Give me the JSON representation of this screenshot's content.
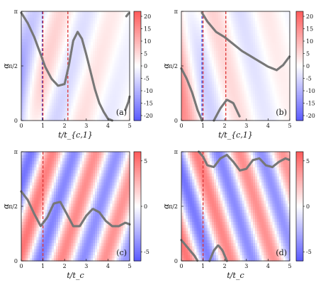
{
  "chart_data": [
    {
      "panel": "(a)",
      "type": "heatmap",
      "xlabel": "t/t_{c,1}",
      "ylabel": "α",
      "xlim": [
        0,
        5
      ],
      "xticks": [
        "0",
        "1",
        "2",
        "3",
        "4",
        "5"
      ],
      "yticks": [
        "0",
        "π/2",
        "π"
      ],
      "colorbar": {
        "ticks": [
          "20",
          "15",
          "10",
          "5",
          "0",
          "-5",
          "-10",
          "-15",
          "-20"
        ],
        "range": [
          -22,
          22
        ]
      },
      "vlines": [
        {
          "x": 0.97,
          "color": "#3355ee"
        },
        {
          "x": 1.0,
          "color": "#dd3333"
        },
        {
          "x": 2.15,
          "color": "#dd3333"
        }
      ],
      "curve": {
        "x": [
          0.0,
          0.3,
          0.6,
          0.9,
          1.1,
          1.4,
          1.7,
          2.0,
          2.2,
          2.4,
          2.6,
          2.8,
          3.0,
          3.2,
          3.4,
          3.6,
          3.8,
          4.0,
          4.2
        ],
        "y": [
          3.1,
          2.8,
          2.4,
          1.9,
          1.55,
          1.2,
          1.0,
          1.05,
          1.6,
          2.3,
          2.55,
          2.35,
          1.9,
          1.4,
          0.9,
          0.5,
          0.25,
          0.05,
          0.0
        ]
      },
      "curve2": {
        "x": [
          4.8,
          4.95,
          5.0
        ],
        "y": [
          0.3,
          0.55,
          0.7
        ]
      },
      "curve3": {
        "x": [
          4.85,
          4.95,
          5.0
        ],
        "y": [
          3.0,
          3.08,
          3.1
        ]
      }
    },
    {
      "panel": "(b)",
      "type": "heatmap",
      "xlabel": "t/t_{c,1}",
      "ylabel": "α",
      "xlim": [
        0,
        5
      ],
      "xticks": [
        "0",
        "1",
        "2",
        "3",
        "4",
        "5"
      ],
      "yticks": [
        "0",
        "π/2",
        "π"
      ],
      "colorbar": {
        "ticks": [
          "20",
          "15",
          "10",
          "5",
          "0",
          "-5",
          "-10",
          "-15",
          "-20"
        ],
        "range": [
          -22,
          22
        ]
      },
      "vlines": [
        {
          "x": 0.95,
          "color": "#3355ee"
        },
        {
          "x": 1.0,
          "color": "#dd3333"
        },
        {
          "x": 2.05,
          "color": "#dd3333"
        }
      ],
      "curve": {
        "x": [
          0.0,
          0.25,
          0.5,
          0.75,
          0.95
        ],
        "y": [
          1.5,
          1.2,
          0.8,
          0.3,
          0.0
        ]
      },
      "curve2": {
        "x": [
          0.95,
          1.2,
          1.6,
          2.0,
          2.4,
          2.8,
          3.2,
          3.6,
          4.0,
          4.4,
          4.7,
          5.0
        ],
        "y": [
          3.1,
          2.85,
          2.55,
          2.4,
          2.2,
          2.0,
          1.85,
          1.7,
          1.55,
          1.45,
          1.6,
          1.85
        ]
      },
      "curve3": {
        "x": [
          1.5,
          1.8,
          2.1,
          2.4,
          2.7
        ],
        "y": [
          0.0,
          0.35,
          0.6,
          0.5,
          0.1
        ]
      }
    },
    {
      "panel": "(c)",
      "type": "heatmap",
      "xlabel": "t/t_c",
      "ylabel": "α",
      "xlim": [
        0,
        5
      ],
      "xticks": [
        "0",
        "1",
        "2",
        "3",
        "4",
        "5"
      ],
      "yticks": [
        "0",
        "π/2",
        "π"
      ],
      "colorbar": {
        "ticks": [
          "5",
          "0",
          "-5"
        ],
        "range": [
          -6,
          6
        ]
      },
      "vlines": [
        {
          "x": 1.0,
          "color": "#dd3333"
        }
      ],
      "curve": {
        "x": [
          0.0,
          0.3,
          0.6,
          0.9,
          1.2,
          1.5,
          1.8,
          2.1,
          2.4,
          2.7,
          3.0,
          3.3,
          3.6,
          3.9,
          4.2,
          4.5,
          4.8,
          5.0
        ],
        "y": [
          2.0,
          1.75,
          1.35,
          1.0,
          1.25,
          1.65,
          1.7,
          1.35,
          1.0,
          1.0,
          1.3,
          1.5,
          1.4,
          1.15,
          1.0,
          1.0,
          1.1,
          1.05
        ]
      }
    },
    {
      "panel": "(d)",
      "type": "heatmap",
      "xlabel": "t/t_c",
      "ylabel": "α",
      "xlim": [
        0,
        5
      ],
      "xticks": [
        "0",
        "1",
        "2",
        "3",
        "4",
        "5"
      ],
      "yticks": [
        "0",
        "π/2",
        "π"
      ],
      "colorbar": {
        "ticks": [
          "5",
          "0",
          "-5"
        ],
        "range": [
          -6,
          6
        ]
      },
      "vlines": [
        {
          "x": 1.0,
          "color": "#dd3333"
        }
      ],
      "curve": {
        "x": [
          0.8,
          1.0,
          1.2,
          1.5,
          1.8,
          2.1,
          2.4,
          2.7,
          3.0,
          3.3,
          3.6,
          3.9,
          4.2,
          4.5,
          4.8,
          5.0
        ],
        "y": [
          3.14,
          3.0,
          2.75,
          2.7,
          2.95,
          3.05,
          2.85,
          2.6,
          2.65,
          2.9,
          2.95,
          2.75,
          2.7,
          2.85,
          2.95,
          2.9
        ]
      },
      "curve2": {
        "x": [
          0.0,
          0.2,
          0.4,
          0.6,
          0.75
        ],
        "y": [
          0.6,
          0.45,
          0.3,
          0.15,
          0.0
        ]
      },
      "curve3": {
        "x": [
          1.3,
          1.5,
          1.7,
          1.9,
          2.1
        ],
        "y": [
          0.0,
          0.3,
          0.45,
          0.3,
          0.0
        ]
      }
    }
  ]
}
